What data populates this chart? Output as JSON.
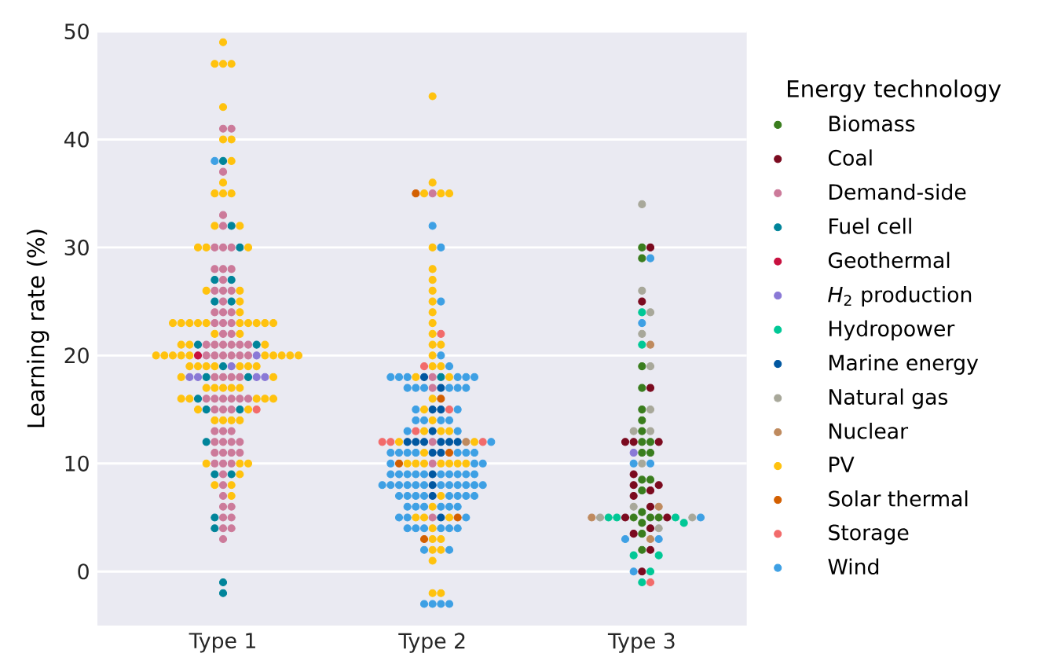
{
  "chart_data": {
    "type": "scatter",
    "ylabel": "Learning rate (%)",
    "legend_title": "Energy technology",
    "legend": "right",
    "grid": "y",
    "marker": "circle",
    "categories": [
      "Type 1",
      "Type 2",
      "Type 3"
    ],
    "ylim": [
      -5,
      50
    ],
    "yticks": [
      0,
      10,
      20,
      30,
      40,
      50
    ],
    "series": [
      {
        "name": "Biomass",
        "color": "#3a7d1e",
        "x": [
          "Type 3",
          "Type 3",
          "Type 3",
          "Type 3",
          "Type 3",
          "Type 3",
          "Type 3",
          "Type 3",
          "Type 3",
          "Type 3",
          "Type 3",
          "Type 3",
          "Type 3",
          "Type 3",
          "Type 3",
          "Type 3",
          "Type 3",
          "Type 3",
          "Type 3",
          "Type 3",
          "Type 3"
        ],
        "values": [
          30,
          29,
          19,
          17,
          15,
          14,
          13,
          12,
          12,
          11,
          11,
          8.5,
          8.5,
          7.5,
          5.5,
          5,
          5,
          5,
          4.5,
          3.5,
          2
        ]
      },
      {
        "name": "Coal",
        "color": "#7b0a1f",
        "x": [
          "Type 3",
          "Type 3",
          "Type 3",
          "Type 3",
          "Type 3",
          "Type 3",
          "Type 3",
          "Type 3",
          "Type 3",
          "Type 3",
          "Type 3",
          "Type 3",
          "Type 3",
          "Type 3",
          "Type 3",
          "Type 3",
          "Type 3",
          "Type 3"
        ],
        "values": [
          30,
          25,
          17,
          12,
          12,
          12,
          9,
          8,
          8,
          7.5,
          7,
          6,
          5,
          5,
          4,
          3.5,
          2,
          0
        ]
      },
      {
        "name": "Demand-side",
        "color": "#cc7a9a",
        "x": [
          "Type 1",
          "Type 1",
          "Type 1",
          "Type 1",
          "Type 1",
          "Type 1",
          "Type 1",
          "Type 1",
          "Type 1",
          "Type 1",
          "Type 1",
          "Type 1",
          "Type 1",
          "Type 1",
          "Type 1",
          "Type 1",
          "Type 1",
          "Type 1",
          "Type 1",
          "Type 1",
          "Type 1",
          "Type 1",
          "Type 1",
          "Type 1",
          "Type 1",
          "Type 1",
          "Type 1",
          "Type 1",
          "Type 1",
          "Type 1",
          "Type 1",
          "Type 1",
          "Type 1",
          "Type 1",
          "Type 1",
          "Type 1",
          "Type 1",
          "Type 1",
          "Type 1",
          "Type 1",
          "Type 1",
          "Type 1",
          "Type 1",
          "Type 1",
          "Type 1",
          "Type 1",
          "Type 1",
          "Type 1",
          "Type 1",
          "Type 1",
          "Type 1",
          "Type 1",
          "Type 1",
          "Type 1",
          "Type 1",
          "Type 1",
          "Type 1",
          "Type 1",
          "Type 1",
          "Type 1",
          "Type 1",
          "Type 1",
          "Type 1",
          "Type 1",
          "Type 1",
          "Type 1",
          "Type 1",
          "Type 1",
          "Type 1",
          "Type 1",
          "Type 1",
          "Type 1",
          "Type 1",
          "Type 2",
          "Type 2",
          "Type 2",
          "Type 2",
          "Type 2",
          "Type 2"
        ],
        "values": [
          41,
          41,
          37,
          33,
          32,
          30,
          30,
          30,
          28,
          28,
          28,
          27,
          26,
          26,
          26,
          25,
          24,
          24,
          24,
          23,
          23,
          23,
          22,
          22,
          21,
          21,
          21,
          21,
          21,
          21,
          20,
          20,
          20,
          20,
          20,
          20,
          18,
          18,
          18,
          18,
          16,
          16,
          16,
          16,
          16,
          16,
          15,
          15,
          15,
          13,
          13,
          13,
          12,
          12,
          12,
          12,
          11,
          11,
          11,
          11,
          10,
          10,
          10,
          9,
          8,
          7,
          6,
          6,
          5,
          5,
          4,
          4,
          3,
          35,
          18,
          17,
          12,
          10,
          5
        ]
      },
      {
        "name": "Fuel cell",
        "color": "#00849a",
        "x": [
          "Type 1",
          "Type 1",
          "Type 1",
          "Type 1",
          "Type 1",
          "Type 1",
          "Type 1",
          "Type 1",
          "Type 1",
          "Type 1",
          "Type 1",
          "Type 1",
          "Type 1",
          "Type 1",
          "Type 1",
          "Type 1",
          "Type 1",
          "Type 1",
          "Type 1",
          "Type 1",
          "Type 1",
          "Type 1",
          "Type 2"
        ],
        "values": [
          38,
          32,
          30,
          27,
          27,
          25,
          25,
          21,
          21,
          19,
          18,
          18,
          16,
          15,
          15,
          12,
          9,
          9,
          5,
          4,
          -1,
          -2,
          18
        ]
      },
      {
        "name": "Geothermal",
        "color": "#c8103f",
        "x": [
          "Type 1"
        ],
        "values": [
          20
        ]
      },
      {
        "name": "*H*$_{2}$ production",
        "color": "#8a79d6",
        "x": [
          "Type 1",
          "Type 1",
          "Type 1",
          "Type 1",
          "Type 1",
          "Type 1",
          "Type 3"
        ],
        "values": [
          20,
          19,
          18,
          18,
          18,
          18,
          11
        ]
      },
      {
        "name": "Hydropower",
        "color": "#00c896",
        "x": [
          "Type 3",
          "Type 3",
          "Type 3",
          "Type 3",
          "Type 3",
          "Type 3",
          "Type 3",
          "Type 3",
          "Type 3",
          "Type 3"
        ],
        "values": [
          24,
          21,
          5,
          5,
          5,
          4.5,
          1.5,
          1.5,
          0,
          -1
        ]
      },
      {
        "name": "Marine energy",
        "color": "#0057a0",
        "x": [
          "Type 2",
          "Type 2",
          "Type 2",
          "Type 2",
          "Type 2",
          "Type 2",
          "Type 2",
          "Type 2",
          "Type 2",
          "Type 2",
          "Type 2",
          "Type 2",
          "Type 2",
          "Type 2",
          "Type 2",
          "Type 2",
          "Type 2"
        ],
        "values": [
          18,
          17,
          15,
          15,
          13,
          12,
          12,
          12,
          12,
          12,
          12,
          11,
          11,
          9,
          8,
          7,
          5
        ]
      },
      {
        "name": "Natural gas",
        "color": "#a8a89a",
        "x": [
          "Type 3",
          "Type 3",
          "Type 3",
          "Type 3",
          "Type 3",
          "Type 3",
          "Type 3",
          "Type 3",
          "Type 3",
          "Type 3",
          "Type 3",
          "Type 3",
          "Type 3"
        ],
        "values": [
          34,
          26,
          24,
          22,
          19,
          15,
          13,
          13,
          10,
          6,
          5,
          5,
          4
        ]
      },
      {
        "name": "Nuclear",
        "color": "#bf8a5e",
        "x": [
          "Type 2",
          "Type 3",
          "Type 3",
          "Type 3",
          "Type 3"
        ],
        "values": [
          12,
          21,
          6,
          5,
          3
        ]
      },
      {
        "name": "PV",
        "color": "#ffc20e",
        "x": [
          "Type 1",
          "Type 1",
          "Type 1",
          "Type 1",
          "Type 1",
          "Type 1",
          "Type 1",
          "Type 1",
          "Type 1",
          "Type 1",
          "Type 1",
          "Type 1",
          "Type 1",
          "Type 1",
          "Type 1",
          "Type 1",
          "Type 1",
          "Type 1",
          "Type 1",
          "Type 1",
          "Type 1",
          "Type 1",
          "Type 1",
          "Type 1",
          "Type 1",
          "Type 1",
          "Type 1",
          "Type 1",
          "Type 1",
          "Type 1",
          "Type 1",
          "Type 1",
          "Type 1",
          "Type 1",
          "Type 1",
          "Type 1",
          "Type 1",
          "Type 1",
          "Type 1",
          "Type 1",
          "Type 1",
          "Type 1",
          "Type 1",
          "Type 1",
          "Type 1",
          "Type 1",
          "Type 1",
          "Type 1",
          "Type 1",
          "Type 1",
          "Type 1",
          "Type 1",
          "Type 1",
          "Type 1",
          "Type 1",
          "Type 1",
          "Type 1",
          "Type 1",
          "Type 1",
          "Type 1",
          "Type 1",
          "Type 1",
          "Type 1",
          "Type 1",
          "Type 1",
          "Type 1",
          "Type 1",
          "Type 1",
          "Type 1",
          "Type 1",
          "Type 1",
          "Type 1",
          "Type 1",
          "Type 1",
          "Type 1",
          "Type 1",
          "Type 1",
          "Type 1",
          "Type 2",
          "Type 2",
          "Type 2",
          "Type 2",
          "Type 2",
          "Type 2",
          "Type 2",
          "Type 2",
          "Type 2",
          "Type 2",
          "Type 2",
          "Type 2",
          "Type 2",
          "Type 2",
          "Type 2",
          "Type 2",
          "Type 2",
          "Type 2",
          "Type 2",
          "Type 2",
          "Type 2",
          "Type 2",
          "Type 2",
          "Type 2",
          "Type 2",
          "Type 2",
          "Type 2",
          "Type 2",
          "Type 2",
          "Type 2",
          "Type 2",
          "Type 2",
          "Type 2",
          "Type 2",
          "Type 2",
          "Type 2",
          "Type 2",
          "Type 2",
          "Type 2",
          "Type 2",
          "Type 2",
          "Type 2",
          "Type 2",
          "Type 2",
          "Type 2",
          "Type 2",
          "Type 2",
          "Type 2",
          "Type 2"
        ],
        "values": [
          49,
          47,
          47,
          47,
          43,
          40,
          40,
          38,
          36,
          35,
          35,
          35,
          32,
          32,
          30,
          30,
          30,
          26,
          26,
          25,
          24,
          23,
          23,
          23,
          23,
          23,
          23,
          23,
          23,
          23,
          23,
          22,
          22,
          21,
          21,
          21,
          20,
          20,
          20,
          20,
          20,
          20,
          20,
          20,
          20,
          20,
          19,
          19,
          19,
          19,
          19,
          19,
          19,
          18,
          18,
          17,
          17,
          17,
          17,
          17,
          16,
          16,
          16,
          16,
          16,
          15,
          15,
          14,
          14,
          14,
          14,
          10,
          10,
          10,
          9,
          8,
          8,
          7,
          44,
          36,
          35,
          35,
          35,
          30,
          28,
          27,
          26,
          25,
          24,
          23,
          22,
          21,
          21,
          20,
          19,
          19,
          18,
          18,
          16,
          15,
          14,
          13,
          13,
          13,
          12,
          12,
          11,
          10,
          10,
          10,
          10,
          10,
          10,
          10,
          7,
          6,
          5,
          5,
          5,
          4,
          3,
          3,
          2,
          2,
          1,
          -2,
          -2
        ]
      },
      {
        "name": "Solar thermal",
        "color": "#d35f00",
        "x": [
          "Type 2",
          "Type 2",
          "Type 2",
          "Type 2",
          "Type 2",
          "Type 2"
        ],
        "values": [
          35,
          16,
          11,
          10,
          5,
          3
        ]
      },
      {
        "name": "Storage",
        "color": "#f26b6b",
        "x": [
          "Type 1",
          "Type 2",
          "Type 2",
          "Type 2",
          "Type 2",
          "Type 2",
          "Type 2",
          "Type 2",
          "Type 3"
        ],
        "values": [
          15,
          22,
          19,
          15,
          13,
          12,
          12,
          12,
          -1
        ]
      },
      {
        "name": "Wind",
        "color": "#3ea0e4",
        "x": [
          "Type 1",
          "Type 2",
          "Type 2",
          "Type 2",
          "Type 2",
          "Type 2",
          "Type 2",
          "Type 2",
          "Type 2",
          "Type 2",
          "Type 2",
          "Type 2",
          "Type 2",
          "Type 2",
          "Type 2",
          "Type 2",
          "Type 2",
          "Type 2",
          "Type 2",
          "Type 2",
          "Type 2",
          "Type 2",
          "Type 2",
          "Type 2",
          "Type 2",
          "Type 2",
          "Type 2",
          "Type 2",
          "Type 2",
          "Type 2",
          "Type 2",
          "Type 2",
          "Type 2",
          "Type 2",
          "Type 2",
          "Type 2",
          "Type 2",
          "Type 2",
          "Type 2",
          "Type 2",
          "Type 2",
          "Type 2",
          "Type 2",
          "Type 2",
          "Type 2",
          "Type 2",
          "Type 2",
          "Type 2",
          "Type 2",
          "Type 2",
          "Type 2",
          "Type 2",
          "Type 2",
          "Type 2",
          "Type 2",
          "Type 2",
          "Type 2",
          "Type 2",
          "Type 2",
          "Type 2",
          "Type 2",
          "Type 2",
          "Type 2",
          "Type 2",
          "Type 2",
          "Type 2",
          "Type 2",
          "Type 2",
          "Type 2",
          "Type 2",
          "Type 2",
          "Type 2",
          "Type 2",
          "Type 2",
          "Type 2",
          "Type 2",
          "Type 2",
          "Type 2",
          "Type 2",
          "Type 2",
          "Type 2",
          "Type 2",
          "Type 2",
          "Type 2",
          "Type 2",
          "Type 2",
          "Type 2",
          "Type 2",
          "Type 3",
          "Type 3",
          "Type 3",
          "Type 3",
          "Type 3",
          "Type 3",
          "Type 3",
          "Type 3"
        ],
        "values": [
          38,
          32,
          30,
          25,
          20,
          19,
          18,
          18,
          18,
          18,
          18,
          18,
          17,
          17,
          17,
          17,
          17,
          17,
          15,
          15,
          14,
          14,
          14,
          14,
          13,
          13,
          12,
          11,
          11,
          11,
          11,
          11,
          11,
          11,
          10,
          10,
          10,
          9,
          9,
          9,
          9,
          9,
          9,
          9,
          9,
          9,
          9,
          8,
          8,
          8,
          8,
          8,
          8,
          8,
          8,
          8,
          8,
          8,
          8,
          7,
          7,
          7,
          7,
          7,
          7,
          7,
          7,
          6,
          6,
          6,
          6,
          6,
          6,
          5,
          5,
          5,
          4,
          4,
          4,
          4,
          4,
          4,
          2,
          2,
          -3,
          -3,
          -3,
          -3,
          29,
          23,
          10,
          10,
          5,
          3,
          3,
          0
        ]
      }
    ]
  }
}
